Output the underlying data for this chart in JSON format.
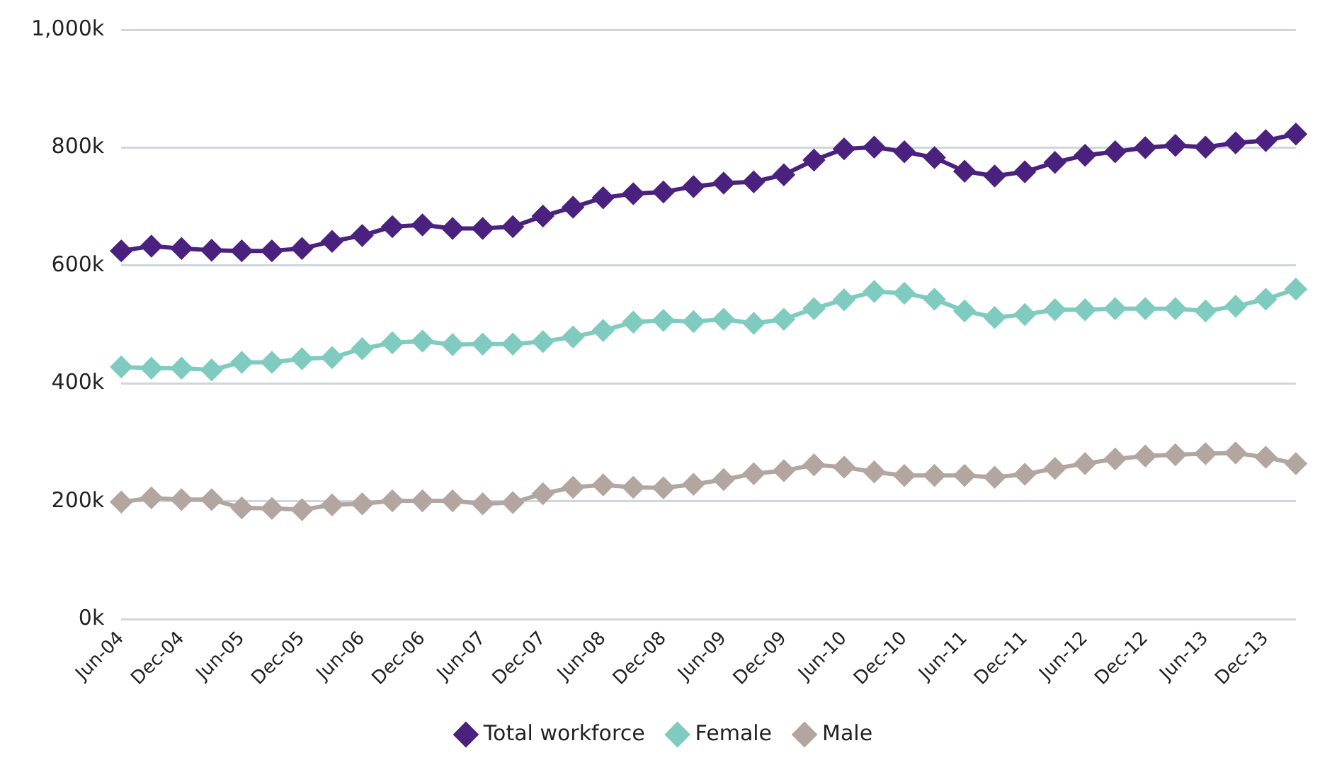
{
  "chart_data": {
    "type": "line",
    "categories": [
      "Jun-04",
      null,
      "Dec-04",
      null,
      "Jun-05",
      null,
      "Dec-05",
      null,
      "Jun-06",
      null,
      "Dec-06",
      null,
      "Jun-07",
      null,
      "Dec-07",
      null,
      "Jun-08",
      null,
      "Dec-08",
      null,
      "Jun-09",
      null,
      "Dec-09",
      null,
      "Jun-10",
      null,
      "Dec-10",
      null,
      "Jun-11",
      null,
      "Dec-11",
      null,
      "Jun-12",
      null,
      "Dec-12",
      null,
      "Jun-13",
      null,
      "Dec-13",
      null
    ],
    "series": [
      {
        "name": "Total workforce",
        "color": "#4b2180",
        "values": [
          625,
          633,
          629,
          626,
          625,
          625,
          629,
          641,
          651,
          666,
          669,
          663,
          663,
          666,
          684,
          699,
          715,
          722,
          725,
          734,
          740,
          742,
          754,
          779,
          798,
          801,
          793,
          783,
          760,
          752,
          759,
          775,
          787,
          793,
          800,
          804,
          801,
          808,
          812,
          823
        ]
      },
      {
        "name": "Female",
        "color": "#7fcbbf",
        "values": [
          428,
          426,
          426,
          423,
          436,
          436,
          442,
          444,
          459,
          469,
          472,
          466,
          467,
          467,
          471,
          479,
          490,
          504,
          507,
          505,
          509,
          502,
          509,
          527,
          542,
          556,
          553,
          543,
          523,
          512,
          517,
          525,
          525,
          527,
          527,
          527,
          523,
          531,
          543,
          560
        ]
      },
      {
        "name": "Male",
        "color": "#b3a5a0",
        "values": [
          199,
          206,
          203,
          203,
          189,
          188,
          186,
          194,
          196,
          201,
          201,
          201,
          196,
          198,
          213,
          224,
          228,
          224,
          223,
          229,
          237,
          247,
          252,
          262,
          258,
          250,
          244,
          244,
          244,
          241,
          246,
          256,
          264,
          272,
          277,
          279,
          281,
          282,
          275,
          264
        ]
      }
    ],
    "ylim": [
      0,
      1000
    ],
    "yticks": [
      {
        "value": 0,
        "label": "0k"
      },
      {
        "value": 200,
        "label": "200k"
      },
      {
        "value": 400,
        "label": "400k"
      },
      {
        "value": 600,
        "label": "600k"
      },
      {
        "value": 800,
        "label": "800k"
      },
      {
        "value": 1000,
        "label": "1,000k"
      }
    ],
    "grid": "y",
    "legend": "bottom",
    "marker": "diamond",
    "line_style": "solid"
  }
}
